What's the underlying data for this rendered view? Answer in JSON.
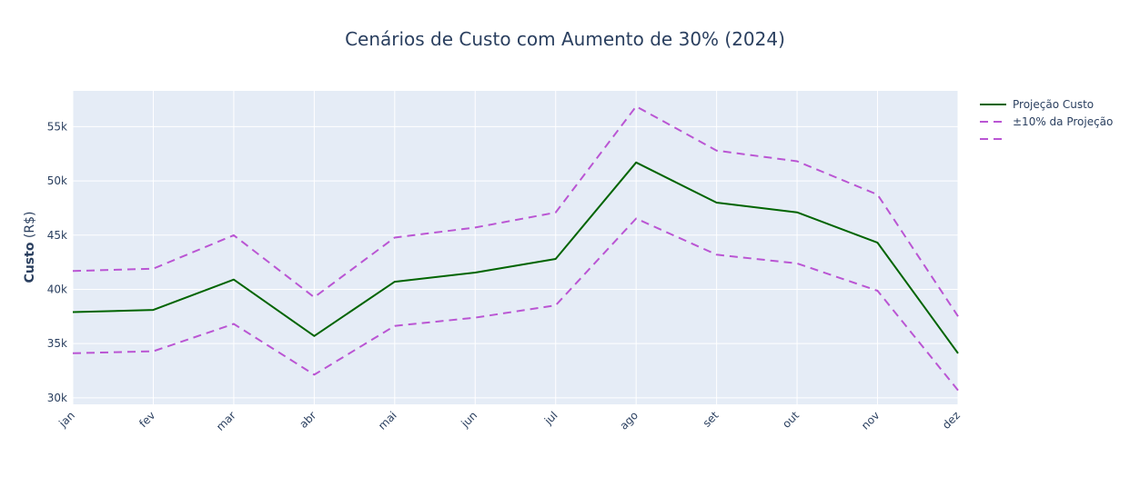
{
  "chart_data": {
    "type": "line",
    "title": "Cenários de Custo com Aumento de 30% (2024)",
    "ylabel_bold": "Custo",
    "ylabel_rest": " (R$)",
    "xlabel": "",
    "categories": [
      "jan",
      "fev",
      "mar",
      "abr",
      "mai",
      "jun",
      "jul",
      "ago",
      "set",
      "out",
      "nov",
      "dez"
    ],
    "ylim": [
      29400,
      58300
    ],
    "yticks": [
      30000,
      35000,
      40000,
      45000,
      50000,
      55000
    ],
    "ytick_labels": [
      "30k",
      "35k",
      "40k",
      "45k",
      "50k",
      "55k"
    ],
    "grid": true,
    "legend_position": "top-right",
    "series": [
      {
        "name": "Projeção Custo",
        "color": "#006400",
        "dash": "solid",
        "values": [
          37900,
          38100,
          40900,
          35700,
          40700,
          41550,
          42800,
          51700,
          48000,
          47100,
          44300,
          34100
        ]
      },
      {
        "name": "±10% da Projeção",
        "color": "#ba55d3",
        "dash": "dash",
        "values": [
          41690,
          41910,
          44990,
          39270,
          44770,
          45705,
          47080,
          56870,
          52800,
          51810,
          48730,
          37510
        ]
      },
      {
        "name": "",
        "color": "#ba55d3",
        "dash": "dash",
        "values": [
          34110,
          34290,
          36810,
          32130,
          36630,
          37395,
          38520,
          46530,
          43200,
          42390,
          39870,
          30690
        ]
      }
    ]
  }
}
